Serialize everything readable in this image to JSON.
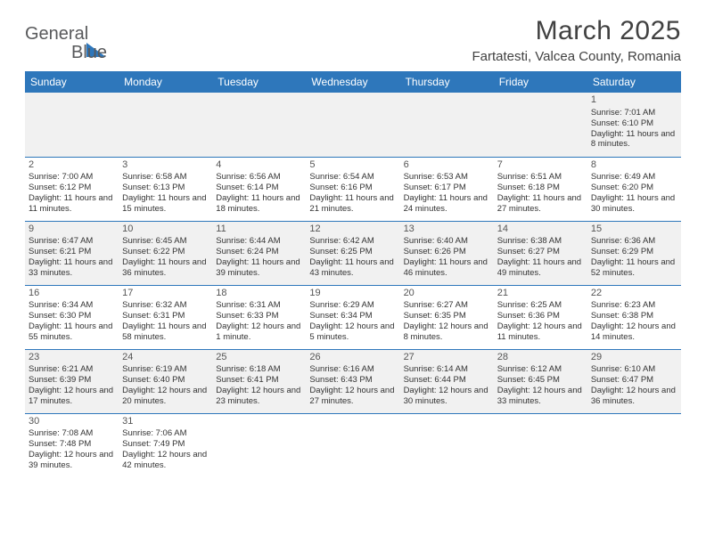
{
  "logo": {
    "text_a": "General",
    "text_b": "Blue"
  },
  "title": "March 2025",
  "location": "Fartatesti, Valcea County, Romania",
  "colors": {
    "header_bg": "#2e77bb",
    "header_text": "#ffffff",
    "row_alt_bg": "#f1f1f1",
    "row_bg": "#ffffff",
    "border": "#2e77bb",
    "title_color": "#414141",
    "body_text": "#333333"
  },
  "day_names": [
    "Sunday",
    "Monday",
    "Tuesday",
    "Wednesday",
    "Thursday",
    "Friday",
    "Saturday"
  ],
  "weeks": [
    [
      null,
      null,
      null,
      null,
      null,
      null,
      {
        "n": "1",
        "sr": "Sunrise: 7:01 AM",
        "ss": "Sunset: 6:10 PM",
        "dl": "Daylight: 11 hours and 8 minutes."
      }
    ],
    [
      {
        "n": "2",
        "sr": "Sunrise: 7:00 AM",
        "ss": "Sunset: 6:12 PM",
        "dl": "Daylight: 11 hours and 11 minutes."
      },
      {
        "n": "3",
        "sr": "Sunrise: 6:58 AM",
        "ss": "Sunset: 6:13 PM",
        "dl": "Daylight: 11 hours and 15 minutes."
      },
      {
        "n": "4",
        "sr": "Sunrise: 6:56 AM",
        "ss": "Sunset: 6:14 PM",
        "dl": "Daylight: 11 hours and 18 minutes."
      },
      {
        "n": "5",
        "sr": "Sunrise: 6:54 AM",
        "ss": "Sunset: 6:16 PM",
        "dl": "Daylight: 11 hours and 21 minutes."
      },
      {
        "n": "6",
        "sr": "Sunrise: 6:53 AM",
        "ss": "Sunset: 6:17 PM",
        "dl": "Daylight: 11 hours and 24 minutes."
      },
      {
        "n": "7",
        "sr": "Sunrise: 6:51 AM",
        "ss": "Sunset: 6:18 PM",
        "dl": "Daylight: 11 hours and 27 minutes."
      },
      {
        "n": "8",
        "sr": "Sunrise: 6:49 AM",
        "ss": "Sunset: 6:20 PM",
        "dl": "Daylight: 11 hours and 30 minutes."
      }
    ],
    [
      {
        "n": "9",
        "sr": "Sunrise: 6:47 AM",
        "ss": "Sunset: 6:21 PM",
        "dl": "Daylight: 11 hours and 33 minutes."
      },
      {
        "n": "10",
        "sr": "Sunrise: 6:45 AM",
        "ss": "Sunset: 6:22 PM",
        "dl": "Daylight: 11 hours and 36 minutes."
      },
      {
        "n": "11",
        "sr": "Sunrise: 6:44 AM",
        "ss": "Sunset: 6:24 PM",
        "dl": "Daylight: 11 hours and 39 minutes."
      },
      {
        "n": "12",
        "sr": "Sunrise: 6:42 AM",
        "ss": "Sunset: 6:25 PM",
        "dl": "Daylight: 11 hours and 43 minutes."
      },
      {
        "n": "13",
        "sr": "Sunrise: 6:40 AM",
        "ss": "Sunset: 6:26 PM",
        "dl": "Daylight: 11 hours and 46 minutes."
      },
      {
        "n": "14",
        "sr": "Sunrise: 6:38 AM",
        "ss": "Sunset: 6:27 PM",
        "dl": "Daylight: 11 hours and 49 minutes."
      },
      {
        "n": "15",
        "sr": "Sunrise: 6:36 AM",
        "ss": "Sunset: 6:29 PM",
        "dl": "Daylight: 11 hours and 52 minutes."
      }
    ],
    [
      {
        "n": "16",
        "sr": "Sunrise: 6:34 AM",
        "ss": "Sunset: 6:30 PM",
        "dl": "Daylight: 11 hours and 55 minutes."
      },
      {
        "n": "17",
        "sr": "Sunrise: 6:32 AM",
        "ss": "Sunset: 6:31 PM",
        "dl": "Daylight: 11 hours and 58 minutes."
      },
      {
        "n": "18",
        "sr": "Sunrise: 6:31 AM",
        "ss": "Sunset: 6:33 PM",
        "dl": "Daylight: 12 hours and 1 minute."
      },
      {
        "n": "19",
        "sr": "Sunrise: 6:29 AM",
        "ss": "Sunset: 6:34 PM",
        "dl": "Daylight: 12 hours and 5 minutes."
      },
      {
        "n": "20",
        "sr": "Sunrise: 6:27 AM",
        "ss": "Sunset: 6:35 PM",
        "dl": "Daylight: 12 hours and 8 minutes."
      },
      {
        "n": "21",
        "sr": "Sunrise: 6:25 AM",
        "ss": "Sunset: 6:36 PM",
        "dl": "Daylight: 12 hours and 11 minutes."
      },
      {
        "n": "22",
        "sr": "Sunrise: 6:23 AM",
        "ss": "Sunset: 6:38 PM",
        "dl": "Daylight: 12 hours and 14 minutes."
      }
    ],
    [
      {
        "n": "23",
        "sr": "Sunrise: 6:21 AM",
        "ss": "Sunset: 6:39 PM",
        "dl": "Daylight: 12 hours and 17 minutes."
      },
      {
        "n": "24",
        "sr": "Sunrise: 6:19 AM",
        "ss": "Sunset: 6:40 PM",
        "dl": "Daylight: 12 hours and 20 minutes."
      },
      {
        "n": "25",
        "sr": "Sunrise: 6:18 AM",
        "ss": "Sunset: 6:41 PM",
        "dl": "Daylight: 12 hours and 23 minutes."
      },
      {
        "n": "26",
        "sr": "Sunrise: 6:16 AM",
        "ss": "Sunset: 6:43 PM",
        "dl": "Daylight: 12 hours and 27 minutes."
      },
      {
        "n": "27",
        "sr": "Sunrise: 6:14 AM",
        "ss": "Sunset: 6:44 PM",
        "dl": "Daylight: 12 hours and 30 minutes."
      },
      {
        "n": "28",
        "sr": "Sunrise: 6:12 AM",
        "ss": "Sunset: 6:45 PM",
        "dl": "Daylight: 12 hours and 33 minutes."
      },
      {
        "n": "29",
        "sr": "Sunrise: 6:10 AM",
        "ss": "Sunset: 6:47 PM",
        "dl": "Daylight: 12 hours and 36 minutes."
      }
    ],
    [
      {
        "n": "30",
        "sr": "Sunrise: 7:08 AM",
        "ss": "Sunset: 7:48 PM",
        "dl": "Daylight: 12 hours and 39 minutes."
      },
      {
        "n": "31",
        "sr": "Sunrise: 7:06 AM",
        "ss": "Sunset: 7:49 PM",
        "dl": "Daylight: 12 hours and 42 minutes."
      },
      null,
      null,
      null,
      null,
      null
    ]
  ]
}
